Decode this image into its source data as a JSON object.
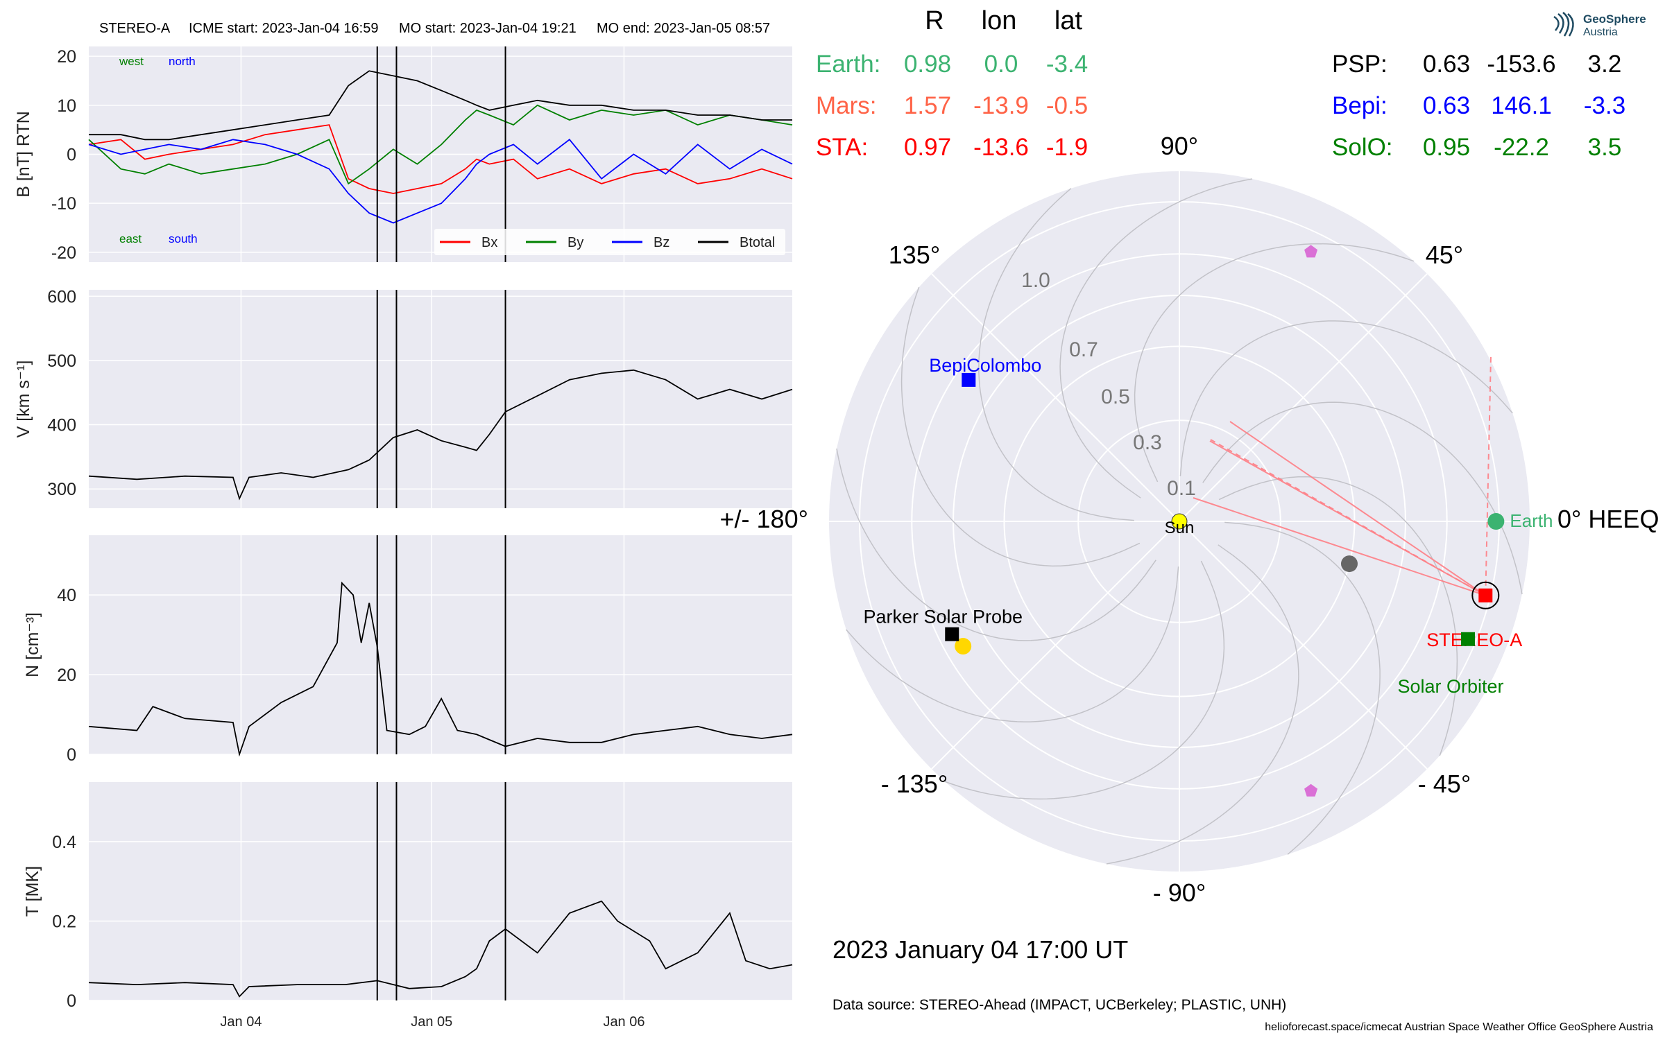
{
  "header": {
    "spacecraft": "STEREO-A",
    "icme_start": "ICME start: 2023-Jan-04 16:59",
    "mo_start": "MO start: 2023-Jan-04 19:21",
    "mo_end": "MO end: 2023-Jan-05 08:57"
  },
  "logo": {
    "name": "GeoSphere",
    "sub": "Austria"
  },
  "position_table": {
    "columns": [
      "R",
      "lon",
      "lat"
    ],
    "left_rows": [
      {
        "name": "Earth:",
        "R": "0.98",
        "lon": "0.0",
        "lat": "-3.4",
        "color": "#3cb371"
      },
      {
        "name": "Mars:",
        "R": "1.57",
        "lon": "-13.9",
        "lat": "-0.5",
        "color": "#ff6347"
      },
      {
        "name": "STA:",
        "R": "0.97",
        "lon": "-13.6",
        "lat": "-1.9",
        "color": "#ff0000"
      }
    ],
    "right_rows": [
      {
        "name": "PSP:",
        "R": "0.63",
        "lon": "-153.6",
        "lat": "3.2",
        "color": "#000000"
      },
      {
        "name": "Bepi:",
        "R": "0.63",
        "lon": "146.1",
        "lat": "-3.3",
        "color": "#0000ff"
      },
      {
        "name": "SolO:",
        "R": "0.95",
        "lon": "-22.2",
        "lat": "3.5",
        "color": "#008000"
      }
    ]
  },
  "polar_plot": {
    "angle_labels": {
      "a0": "0° HEEQ",
      "a45": "45°",
      "a90": "90°",
      "a135": "135°",
      "a180": "+/- 180°",
      "am135": "- 135°",
      "am90": "- 90°",
      "am45": "- 45°"
    },
    "radial_ticks": [
      "0.1",
      "0.3",
      "0.5",
      "0.7",
      "1.0"
    ],
    "sun_label": "Sun",
    "bodies": [
      {
        "label": "Earth",
        "r": 0.98,
        "lon": 0.0,
        "marker": "circle",
        "color": "#3cb371"
      },
      {
        "label": "STEREO-A",
        "r": 0.97,
        "lon": -13.6,
        "marker": "square",
        "color": "#ff0000"
      },
      {
        "label": "Solar Orbiter",
        "r": 0.95,
        "lon": -22.2,
        "marker": "square",
        "color": "#008000"
      },
      {
        "label": "BepiColombo",
        "r": 0.63,
        "lon": 146.1,
        "marker": "square",
        "color": "#0000ff"
      },
      {
        "label": "Parker Solar Probe",
        "r": 0.63,
        "lon": -153.6,
        "marker": "square",
        "color": "#000000"
      }
    ],
    "planet_markers": [
      {
        "r": 0.3,
        "lon": -14.0,
        "marker": "circle",
        "color": "#666666"
      },
      {
        "r": 0.61,
        "lon": -150.0,
        "marker": "circle",
        "color": "#ffd700"
      },
      {
        "r": 0.88,
        "lon": 64.0,
        "marker": "pentagon",
        "color": "#da70d6"
      },
      {
        "r": 0.88,
        "lon": -64.0,
        "marker": "pentagon",
        "color": "#da70d6"
      }
    ],
    "date": "2023 January 04  17:00 UT",
    "source": "Data source: STEREO-Ahead (IMPACT, UCBerkeley; PLASTIC, UNH)",
    "footer": "helioforecast.space/icmecat   Austrian Space Weather Office   GeoSphere Austria"
  },
  "chart_data": [
    {
      "type": "line",
      "ylabel": "B [nT] RTN",
      "ylim": [
        -22,
        22
      ],
      "yticks": [
        20,
        10,
        0,
        -10,
        -20
      ],
      "regions": {
        "west": "west",
        "north": "north",
        "east": "east",
        "south": "south"
      },
      "legend": [
        "Bx",
        "By",
        "Bz",
        "Btotal"
      ],
      "series": [
        {
          "name": "Bx",
          "color": "#ff0000",
          "points": [
            [
              0,
              2
            ],
            [
              0.2,
              3
            ],
            [
              0.35,
              -1
            ],
            [
              0.5,
              0
            ],
            [
              0.7,
              1
            ],
            [
              0.9,
              2
            ],
            [
              1.1,
              4
            ],
            [
              1.3,
              5
            ],
            [
              1.5,
              6
            ],
            [
              1.62,
              -5
            ],
            [
              1.75,
              -7
            ],
            [
              1.9,
              -8
            ],
            [
              2.05,
              -7
            ],
            [
              2.2,
              -6
            ],
            [
              2.35,
              -3
            ],
            [
              2.42,
              -1
            ],
            [
              2.5,
              -2
            ],
            [
              2.65,
              -1
            ],
            [
              2.8,
              -5
            ],
            [
              3.0,
              -3
            ],
            [
              3.2,
              -6
            ],
            [
              3.4,
              -4
            ],
            [
              3.6,
              -3
            ],
            [
              3.8,
              -6
            ],
            [
              4.0,
              -5
            ],
            [
              4.2,
              -3
            ],
            [
              4.39,
              -5
            ]
          ]
        },
        {
          "name": "By",
          "color": "#008000",
          "points": [
            [
              0,
              3
            ],
            [
              0.2,
              -3
            ],
            [
              0.35,
              -4
            ],
            [
              0.5,
              -2
            ],
            [
              0.7,
              -4
            ],
            [
              0.9,
              -3
            ],
            [
              1.1,
              -2
            ],
            [
              1.3,
              0
            ],
            [
              1.5,
              3
            ],
            [
              1.62,
              -6
            ],
            [
              1.75,
              -3
            ],
            [
              1.9,
              1
            ],
            [
              2.05,
              -2
            ],
            [
              2.2,
              2
            ],
            [
              2.35,
              7
            ],
            [
              2.42,
              9
            ],
            [
              2.5,
              8
            ],
            [
              2.65,
              6
            ],
            [
              2.8,
              10
            ],
            [
              3.0,
              7
            ],
            [
              3.2,
              9
            ],
            [
              3.4,
              8
            ],
            [
              3.6,
              9
            ],
            [
              3.8,
              6
            ],
            [
              4.0,
              8
            ],
            [
              4.2,
              7
            ],
            [
              4.39,
              6
            ]
          ]
        },
        {
          "name": "Bz",
          "color": "#0000ff",
          "points": [
            [
              0,
              2
            ],
            [
              0.2,
              0
            ],
            [
              0.35,
              1
            ],
            [
              0.5,
              2
            ],
            [
              0.7,
              1
            ],
            [
              0.9,
              3
            ],
            [
              1.1,
              2
            ],
            [
              1.3,
              0
            ],
            [
              1.5,
              -3
            ],
            [
              1.62,
              -8
            ],
            [
              1.75,
              -12
            ],
            [
              1.9,
              -14
            ],
            [
              2.05,
              -12
            ],
            [
              2.2,
              -10
            ],
            [
              2.35,
              -5
            ],
            [
              2.42,
              -2
            ],
            [
              2.5,
              0
            ],
            [
              2.65,
              2
            ],
            [
              2.8,
              -2
            ],
            [
              3.0,
              3
            ],
            [
              3.2,
              -5
            ],
            [
              3.4,
              0
            ],
            [
              3.6,
              -4
            ],
            [
              3.8,
              2
            ],
            [
              4.0,
              -3
            ],
            [
              4.2,
              1
            ],
            [
              4.39,
              -2
            ]
          ]
        },
        {
          "name": "Btotal",
          "color": "#000000",
          "points": [
            [
              0,
              4
            ],
            [
              0.2,
              4
            ],
            [
              0.35,
              3
            ],
            [
              0.5,
              3
            ],
            [
              0.7,
              4
            ],
            [
              0.9,
              5
            ],
            [
              1.1,
              6
            ],
            [
              1.3,
              7
            ],
            [
              1.5,
              8
            ],
            [
              1.62,
              14
            ],
            [
              1.75,
              17
            ],
            [
              1.9,
              16
            ],
            [
              2.05,
              15
            ],
            [
              2.2,
              13
            ],
            [
              2.35,
              11
            ],
            [
              2.42,
              10
            ],
            [
              2.5,
              9
            ],
            [
              2.65,
              10
            ],
            [
              2.8,
              11
            ],
            [
              3.0,
              10
            ],
            [
              3.2,
              10
            ],
            [
              3.4,
              9
            ],
            [
              3.6,
              9
            ],
            [
              3.8,
              8
            ],
            [
              4.0,
              8
            ],
            [
              4.2,
              7
            ],
            [
              4.39,
              7
            ]
          ]
        }
      ]
    },
    {
      "type": "line",
      "ylabel": "V [km s⁻¹]",
      "ylim": [
        270,
        610
      ],
      "yticks": [
        600,
        500,
        400,
        300
      ],
      "series": [
        {
          "name": "V",
          "color": "#000000",
          "points": [
            [
              0,
              320
            ],
            [
              0.3,
              315
            ],
            [
              0.6,
              320
            ],
            [
              0.9,
              318
            ],
            [
              0.94,
              285
            ],
            [
              1.0,
              318
            ],
            [
              1.2,
              325
            ],
            [
              1.4,
              318
            ],
            [
              1.62,
              330
            ],
            [
              1.75,
              345
            ],
            [
              1.9,
              380
            ],
            [
              2.05,
              392
            ],
            [
              2.2,
              375
            ],
            [
              2.35,
              365
            ],
            [
              2.42,
              360
            ],
            [
              2.5,
              385
            ],
            [
              2.6,
              420
            ],
            [
              2.8,
              445
            ],
            [
              3.0,
              470
            ],
            [
              3.2,
              480
            ],
            [
              3.4,
              485
            ],
            [
              3.6,
              470
            ],
            [
              3.8,
              440
            ],
            [
              4.0,
              455
            ],
            [
              4.2,
              440
            ],
            [
              4.39,
              455
            ]
          ]
        }
      ]
    },
    {
      "type": "line",
      "ylabel": "N [cm⁻³]",
      "ylim": [
        0,
        55
      ],
      "yticks": [
        40,
        20,
        0
      ],
      "series": [
        {
          "name": "N",
          "color": "#000000",
          "points": [
            [
              0,
              7
            ],
            [
              0.3,
              6
            ],
            [
              0.4,
              12
            ],
            [
              0.6,
              9
            ],
            [
              0.9,
              8
            ],
            [
              0.94,
              0
            ],
            [
              1.0,
              7
            ],
            [
              1.2,
              13
            ],
            [
              1.4,
              17
            ],
            [
              1.55,
              28
            ],
            [
              1.58,
              43
            ],
            [
              1.65,
              40
            ],
            [
              1.7,
              28
            ],
            [
              1.75,
              38
            ],
            [
              1.8,
              27
            ],
            [
              1.86,
              6
            ],
            [
              2.0,
              5
            ],
            [
              2.1,
              7
            ],
            [
              2.2,
              14
            ],
            [
              2.3,
              6
            ],
            [
              2.42,
              5
            ],
            [
              2.6,
              2
            ],
            [
              2.8,
              4
            ],
            [
              3.0,
              3
            ],
            [
              3.2,
              3
            ],
            [
              3.4,
              5
            ],
            [
              3.6,
              6
            ],
            [
              3.8,
              7
            ],
            [
              4.0,
              5
            ],
            [
              4.2,
              4
            ],
            [
              4.39,
              5
            ]
          ]
        }
      ]
    },
    {
      "type": "line",
      "ylabel": "T [MK]",
      "ylim": [
        0,
        0.55
      ],
      "yticks": [
        0.4,
        0.2,
        0.0
      ],
      "xticks": [
        {
          "x": 0.95,
          "label": "Jan 04"
        },
        {
          "x": 2.14,
          "label": "Jan 05"
        },
        {
          "x": 3.34,
          "label": "Jan 06"
        }
      ],
      "series": [
        {
          "name": "T",
          "color": "#000000",
          "points": [
            [
              0,
              0.045
            ],
            [
              0.3,
              0.04
            ],
            [
              0.6,
              0.045
            ],
            [
              0.9,
              0.04
            ],
            [
              0.94,
              0.01
            ],
            [
              1.0,
              0.035
            ],
            [
              1.3,
              0.04
            ],
            [
              1.6,
              0.04
            ],
            [
              1.8,
              0.05
            ],
            [
              2.0,
              0.03
            ],
            [
              2.2,
              0.035
            ],
            [
              2.35,
              0.06
            ],
            [
              2.42,
              0.08
            ],
            [
              2.5,
              0.15
            ],
            [
              2.6,
              0.18
            ],
            [
              2.8,
              0.12
            ],
            [
              3.0,
              0.22
            ],
            [
              3.2,
              0.25
            ],
            [
              3.3,
              0.2
            ],
            [
              3.5,
              0.15
            ],
            [
              3.6,
              0.08
            ],
            [
              3.8,
              0.12
            ],
            [
              4.0,
              0.22
            ],
            [
              4.1,
              0.1
            ],
            [
              4.25,
              0.08
            ],
            [
              4.39,
              0.09
            ]
          ]
        }
      ]
    }
  ],
  "event_lines_x": [
    1.8,
    1.92,
    2.6
  ]
}
